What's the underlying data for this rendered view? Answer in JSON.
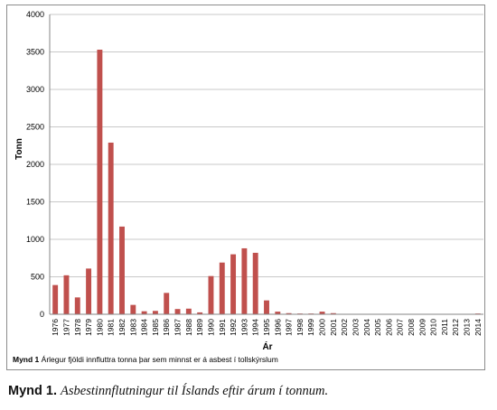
{
  "chart_data": {
    "type": "bar",
    "xlabel": "Ár",
    "ylabel": "Tonn",
    "ylim": [
      0,
      4000
    ],
    "yticks": [
      0,
      500,
      1000,
      1500,
      2000,
      2500,
      3000,
      3500,
      4000
    ],
    "grid": "horizontal",
    "legend": "none",
    "bar_color": "#c0504d",
    "categories": [
      "1976",
      "1977",
      "1978",
      "1979",
      "1980",
      "1981",
      "1982",
      "1983",
      "1984",
      "1985",
      "1986",
      "1987",
      "1988",
      "1989",
      "1990",
      "1991",
      "1992",
      "1993",
      "1994",
      "1995",
      "1996",
      "1997",
      "1998",
      "1999",
      "2000",
      "2001",
      "2002",
      "2003",
      "2004",
      "2005",
      "2006",
      "2007",
      "2008",
      "2009",
      "2010",
      "2011",
      "2012",
      "2013",
      "2014"
    ],
    "values": [
      390,
      520,
      225,
      610,
      3530,
      2290,
      1170,
      125,
      40,
      45,
      285,
      70,
      75,
      25,
      510,
      690,
      800,
      880,
      820,
      185,
      35,
      15,
      10,
      10,
      35,
      15,
      5,
      5,
      2,
      2,
      5,
      2,
      2,
      2,
      1,
      1,
      1,
      1,
      10
    ]
  },
  "figure": {
    "inner_caption_label": "Mynd 1",
    "inner_caption_text": "Árlegur fjöldi innfluttra tonna þar sem minnst er á asbest í tollskýrslum",
    "caption_label": "Mynd 1.",
    "caption_text": "Asbestinnflutningur til Íslands eftir árum í tonnum."
  }
}
